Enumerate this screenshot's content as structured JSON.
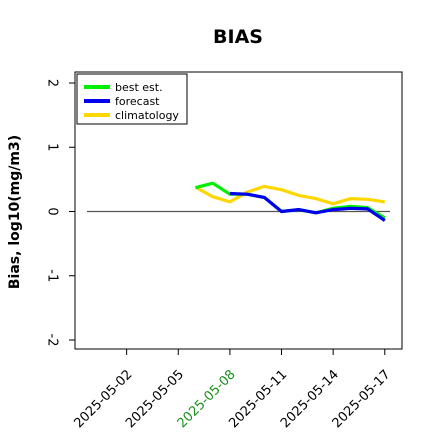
{
  "chart_data": {
    "type": "line",
    "title": "BIAS",
    "ylabel": "Bias, log10(mg/m3)",
    "xlabel": "",
    "ylim": [
      -2,
      2
    ],
    "yticks": [
      -2,
      -1,
      0,
      1,
      2
    ],
    "ytick_labels": [
      "-2",
      "-1",
      "0",
      "1",
      "2"
    ],
    "xlim": [
      "2025-04-29",
      "2025-05-18"
    ],
    "xticks": [
      "2025-05-02",
      "2025-05-05",
      "2025-05-08",
      "2025-05-11",
      "2025-05-14",
      "2025-05-17"
    ],
    "xtick_labels": [
      "2025-05-02",
      "2025-05-05",
      "2025-05-08",
      "2025-05-11",
      "2025-05-14",
      "2025-05-17"
    ],
    "highlighted_xtick": "2025-05-08",
    "highlight_color": "#1a8f1a",
    "reference_line_y": 0,
    "legend_position": "top-left",
    "grid": false,
    "x": [
      "2025-05-06",
      "2025-05-07",
      "2025-05-08",
      "2025-05-09",
      "2025-05-10",
      "2025-05-11",
      "2025-05-12",
      "2025-05-13",
      "2025-05-14",
      "2025-05-15",
      "2025-05-16",
      "2025-05-17"
    ],
    "series": [
      {
        "name": "best est.",
        "color": "#00ee00",
        "values": [
          0.37,
          0.44,
          0.27,
          0.27,
          0.22,
          0.0,
          0.03,
          -0.02,
          0.05,
          0.08,
          0.06,
          -0.1
        ]
      },
      {
        "name": "forecast",
        "color": "#0000ee",
        "values": [
          null,
          null,
          0.28,
          0.27,
          0.22,
          0.0,
          0.03,
          -0.02,
          0.03,
          0.05,
          0.04,
          -0.14
        ]
      },
      {
        "name": "climatology",
        "color": "#ffd700",
        "values": [
          0.38,
          0.23,
          0.15,
          0.3,
          0.39,
          0.34,
          0.25,
          0.2,
          0.12,
          0.2,
          0.19,
          0.15
        ]
      }
    ]
  }
}
